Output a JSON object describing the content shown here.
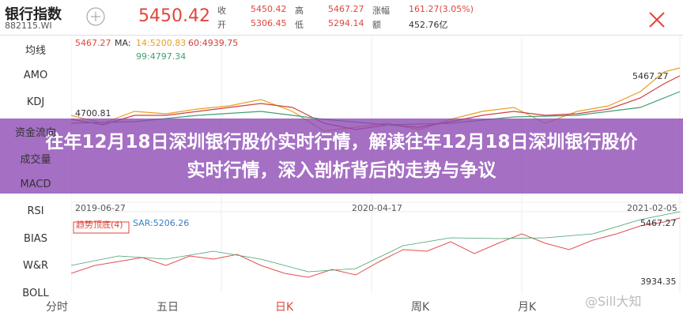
{
  "header": {
    "name": "银行指数",
    "code": "882115.WI",
    "price": "5450.42",
    "stats": [
      [
        "收",
        "5450.42"
      ],
      [
        "高",
        "5467.27"
      ],
      [
        "涨幅",
        "161.27(3.05%)"
      ],
      [
        "开",
        "5306.45"
      ],
      [
        "低",
        "5294.14"
      ],
      [
        "额",
        "452.76亿"
      ]
    ]
  },
  "menu": [
    "均线",
    "AMO",
    "KDJ",
    "资金流向",
    "成交量",
    "MACD",
    "RSI",
    "BIAS",
    "W&R",
    "BOLL"
  ],
  "chart": {
    "high_label": "5467.27",
    "ma_label": "MA:",
    "ma14": "14:5200.83",
    "ma60": "60:4939.75",
    "ma99": "99:4797.34",
    "low_label": "4700.81",
    "peak_label": "5467.27",
    "dates": [
      "2019-06-27",
      "2020-04-17",
      "2021-02-05"
    ],
    "indicator": "趋势顶底(4)",
    "sar": "SAR:5206.26",
    "lower_high": "5467.27",
    "lower_low": "3934.35"
  },
  "tabs": [
    "分时",
    "五日",
    "日K",
    "周K",
    "月K"
  ],
  "watermark": "@Sill大知",
  "overlay_title": "往年12月18日深圳银行股价实时行情，解读往年12月18日深圳银行股价实时行情，深入剖析背后的走势与争议"
}
